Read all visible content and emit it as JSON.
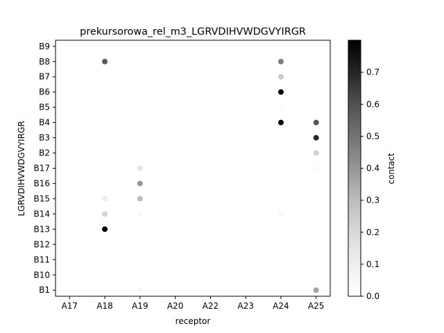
{
  "chart_data": {
    "type": "scatter",
    "title": "prekursorowa_rel_m3_LGRVDIHVWDGVYIRGR",
    "xlabel": "receptor",
    "ylabel": "LGRVDIHVWDGVYIRGR",
    "x_categories": [
      "A17",
      "A18",
      "A19",
      "A20",
      "A22",
      "A23",
      "A24",
      "A25"
    ],
    "y_categories": [
      "B1",
      "B10",
      "B11",
      "B12",
      "B13",
      "B14",
      "B15",
      "B16",
      "B17",
      "B2",
      "B3",
      "B4",
      "B5",
      "B6",
      "B7",
      "B8",
      "B9"
    ],
    "colorbar": {
      "label": "contact",
      "colormap": "Greys",
      "range": [
        0.0,
        0.8
      ],
      "ticks": [
        "0.0",
        "0.1",
        "0.2",
        "0.3",
        "0.4",
        "0.5",
        "0.6",
        "0.7"
      ],
      "tick_values": [
        0.0,
        0.1,
        0.2,
        0.3,
        0.4,
        0.5,
        0.6,
        0.7
      ]
    },
    "points": [
      {
        "x": "A18",
        "y": "B9",
        "value": 0.01
      },
      {
        "x": "A18",
        "y": "B8",
        "value": 0.58
      },
      {
        "x": "A18",
        "y": "B17",
        "value": 0.01
      },
      {
        "x": "A18",
        "y": "B15",
        "value": 0.12
      },
      {
        "x": "A18",
        "y": "B14",
        "value": 0.22
      },
      {
        "x": "A18",
        "y": "B13",
        "value": 0.8
      },
      {
        "x": "A18",
        "y": "B12",
        "value": 0.01
      },
      {
        "x": "A18",
        "y": "B10",
        "value": 0.01
      },
      {
        "x": "A17",
        "y": "B17",
        "value": 0.01
      },
      {
        "x": "A19",
        "y": "B17",
        "value": 0.15
      },
      {
        "x": "A19",
        "y": "B16",
        "value": 0.4
      },
      {
        "x": "A19",
        "y": "B15",
        "value": 0.3
      },
      {
        "x": "A19",
        "y": "B14",
        "value": 0.04
      },
      {
        "x": "A19",
        "y": "B1",
        "value": 0.04
      },
      {
        "x": "A20",
        "y": "B5",
        "value": 0.01
      },
      {
        "x": "A23",
        "y": "B15",
        "value": 0.01
      },
      {
        "x": "A24",
        "y": "B9",
        "value": 0.02
      },
      {
        "x": "A24",
        "y": "B8",
        "value": 0.47
      },
      {
        "x": "A24",
        "y": "B7",
        "value": 0.25
      },
      {
        "x": "A24",
        "y": "B6",
        "value": 0.8
      },
      {
        "x": "A24",
        "y": "B5",
        "value": 0.03
      },
      {
        "x": "A24",
        "y": "B4",
        "value": 0.8
      },
      {
        "x": "A24",
        "y": "B15",
        "value": 0.01
      },
      {
        "x": "A24",
        "y": "B14",
        "value": 0.04
      },
      {
        "x": "A24",
        "y": "B12",
        "value": 0.01
      },
      {
        "x": "A24",
        "y": "B10",
        "value": 0.01
      },
      {
        "x": "A25",
        "y": "B5",
        "value": 0.01
      },
      {
        "x": "A25",
        "y": "B4",
        "value": 0.6
      },
      {
        "x": "A25",
        "y": "B3",
        "value": 0.7
      },
      {
        "x": "A25",
        "y": "B2",
        "value": 0.22
      },
      {
        "x": "A25",
        "y": "B17",
        "value": 0.02
      },
      {
        "x": "A25",
        "y": "B1",
        "value": 0.37
      }
    ]
  }
}
